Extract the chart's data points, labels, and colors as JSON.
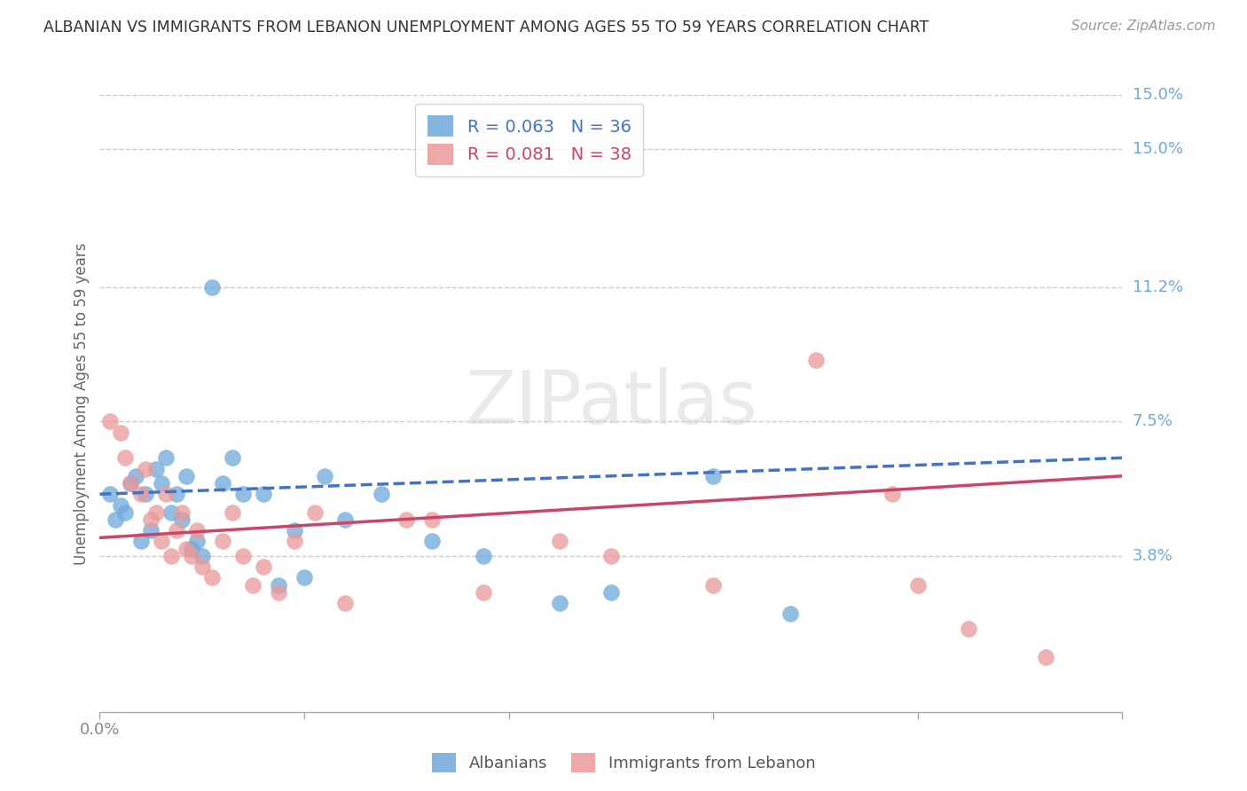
{
  "title": "ALBANIAN VS IMMIGRANTS FROM LEBANON UNEMPLOYMENT AMONG AGES 55 TO 59 YEARS CORRELATION CHART",
  "source": "Source: ZipAtlas.com",
  "ylabel": "Unemployment Among Ages 55 to 59 years",
  "ytick_labels": [
    "15.0%",
    "11.2%",
    "7.5%",
    "3.8%"
  ],
  "ytick_values": [
    0.15,
    0.112,
    0.075,
    0.038
  ],
  "xmin": 0.0,
  "xmax": 0.2,
  "ymin": -0.005,
  "ymax": 0.165,
  "albanians_R": 0.063,
  "albanians_N": 36,
  "lebanon_R": 0.081,
  "lebanon_N": 38,
  "albanian_color": "#6fa8dc",
  "lebanon_color": "#ea9999",
  "trend_albanian_color": "#4472c4",
  "trend_lebanon_color": "#cc4466",
  "albanians_x": [
    0.002,
    0.003,
    0.004,
    0.005,
    0.006,
    0.007,
    0.008,
    0.009,
    0.01,
    0.011,
    0.012,
    0.013,
    0.014,
    0.015,
    0.016,
    0.017,
    0.018,
    0.019,
    0.02,
    0.022,
    0.024,
    0.026,
    0.028,
    0.032,
    0.035,
    0.038,
    0.04,
    0.044,
    0.048,
    0.055,
    0.065,
    0.075,
    0.09,
    0.1,
    0.12,
    0.135
  ],
  "albanians_y": [
    0.055,
    0.048,
    0.052,
    0.05,
    0.058,
    0.06,
    0.042,
    0.055,
    0.045,
    0.062,
    0.058,
    0.065,
    0.05,
    0.055,
    0.048,
    0.06,
    0.04,
    0.042,
    0.038,
    0.112,
    0.058,
    0.065,
    0.055,
    0.055,
    0.03,
    0.045,
    0.032,
    0.06,
    0.048,
    0.055,
    0.042,
    0.038,
    0.025,
    0.028,
    0.06,
    0.022
  ],
  "lebanon_x": [
    0.002,
    0.004,
    0.005,
    0.006,
    0.008,
    0.009,
    0.01,
    0.011,
    0.012,
    0.013,
    0.014,
    0.015,
    0.016,
    0.017,
    0.018,
    0.019,
    0.02,
    0.022,
    0.024,
    0.026,
    0.028,
    0.03,
    0.032,
    0.035,
    0.038,
    0.042,
    0.048,
    0.06,
    0.065,
    0.075,
    0.09,
    0.1,
    0.12,
    0.14,
    0.155,
    0.16,
    0.17,
    0.185
  ],
  "lebanon_y": [
    0.075,
    0.072,
    0.065,
    0.058,
    0.055,
    0.062,
    0.048,
    0.05,
    0.042,
    0.055,
    0.038,
    0.045,
    0.05,
    0.04,
    0.038,
    0.045,
    0.035,
    0.032,
    0.042,
    0.05,
    0.038,
    0.03,
    0.035,
    0.028,
    0.042,
    0.05,
    0.025,
    0.048,
    0.048,
    0.028,
    0.042,
    0.038,
    0.03,
    0.092,
    0.055,
    0.03,
    0.018,
    0.01
  ],
  "background_color": "#ffffff",
  "grid_color": "#cccccc",
  "axis_color": "#aaaaaa",
  "title_color": "#333333",
  "right_label_color": "#6fa8dc",
  "source_color": "#999999"
}
